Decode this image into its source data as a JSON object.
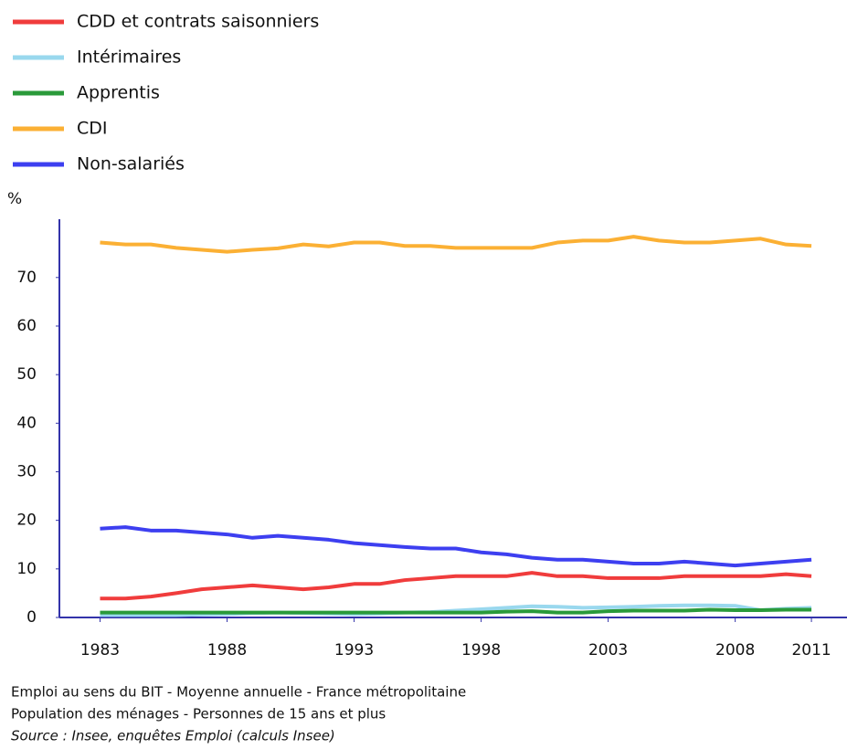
{
  "chart_data": {
    "type": "line",
    "y_label": "%",
    "x": [
      1983,
      1984,
      1985,
      1986,
      1987,
      1988,
      1989,
      1990,
      1991,
      1992,
      1993,
      1994,
      1995,
      1996,
      1997,
      1998,
      1999,
      2000,
      2001,
      2002,
      2003,
      2004,
      2005,
      2006,
      2007,
      2008,
      2009,
      2010,
      2011
    ],
    "series": [
      {
        "name": "CDD et contrats saisonniers",
        "color": "#f03c3c",
        "values": [
          3.9,
          3.9,
          4.3,
          5.0,
          5.8,
          6.2,
          6.6,
          6.2,
          5.8,
          6.2,
          6.9,
          6.9,
          7.7,
          8.1,
          8.5,
          8.5,
          8.5,
          9.2,
          8.5,
          8.5,
          8.1,
          8.1,
          8.1,
          8.5,
          8.5,
          8.5,
          8.5,
          8.9,
          8.5
        ]
      },
      {
        "name": "Intérimaires",
        "color": "#99d8ee",
        "values": [
          0.5,
          0.5,
          0.5,
          0.5,
          0.6,
          0.7,
          0.9,
          1.0,
          0.9,
          0.8,
          0.7,
          0.8,
          1.0,
          1.1,
          1.4,
          1.7,
          2.0,
          2.3,
          2.2,
          2.0,
          2.1,
          2.2,
          2.4,
          2.5,
          2.5,
          2.4,
          1.5,
          1.8,
          2.0
        ]
      },
      {
        "name": "Apprentis",
        "color": "#2a9a3a",
        "values": [
          1.0,
          1.0,
          1.0,
          1.0,
          1.0,
          1.0,
          1.0,
          1.0,
          1.0,
          1.0,
          1.0,
          1.0,
          1.0,
          1.0,
          1.0,
          1.0,
          1.2,
          1.3,
          1.0,
          1.0,
          1.3,
          1.4,
          1.4,
          1.4,
          1.6,
          1.5,
          1.5,
          1.6,
          1.6
        ]
      },
      {
        "name": "CDI",
        "color": "#fbb034",
        "values": [
          77.2,
          76.8,
          76.8,
          76.1,
          75.7,
          75.3,
          75.7,
          76.0,
          76.8,
          76.4,
          77.2,
          77.2,
          76.5,
          76.5,
          76.1,
          76.1,
          76.1,
          76.1,
          77.2,
          77.6,
          77.6,
          78.4,
          77.6,
          77.2,
          77.2,
          77.6,
          78.0,
          76.8,
          76.5
        ]
      },
      {
        "name": "Non-salariés",
        "color": "#3d3ff0",
        "values": [
          18.3,
          18.6,
          17.9,
          17.9,
          17.5,
          17.1,
          16.4,
          16.8,
          16.4,
          16.0,
          15.3,
          14.9,
          14.5,
          14.2,
          14.2,
          13.4,
          13.0,
          12.3,
          11.9,
          11.9,
          11.5,
          11.1,
          11.1,
          11.5,
          11.1,
          10.7,
          11.1,
          11.5,
          11.9
        ]
      }
    ],
    "xlim": [
      1981.4,
      2012.4
    ],
    "xticks": [
      1983,
      1988,
      1993,
      1998,
      2003,
      2008,
      2011
    ],
    "ylim": [
      0,
      82
    ],
    "yticks": [
      0,
      10,
      20,
      30,
      40,
      50,
      60,
      70
    ],
    "notes": [
      "Emploi au sens du BIT - Moyenne annuelle - France métropolitaine",
      "Population des ménages - Personnes de 15 ans et plus"
    ],
    "source": "Source : Insee, enquêtes Emploi (calculs Insee)"
  }
}
